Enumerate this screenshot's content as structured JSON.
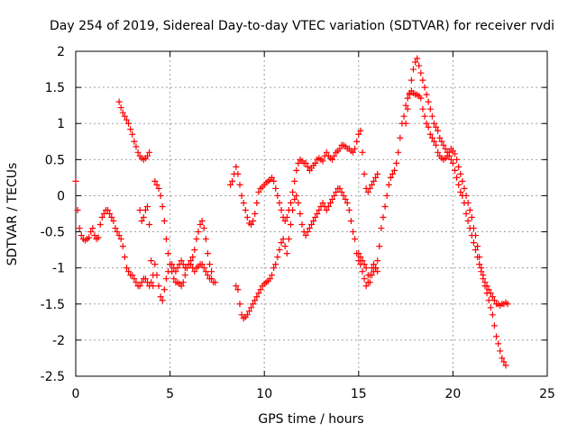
{
  "chart_data": {
    "type": "scatter",
    "title": "Day 254 of 2019, Sidereal Day-to-day VTEC variation (SDTVAR) for receiver rvdi",
    "xlabel": "GPS time / hours",
    "ylabel": "SDTVAR / TECUs",
    "xlim": [
      0,
      25
    ],
    "ylim": [
      -2.5,
      2
    ],
    "xticks": [
      "0",
      "5",
      "10",
      "15",
      "20",
      "25"
    ],
    "yticks": [
      "-2.5",
      "-2",
      "-1.5",
      "-1",
      "-0.5",
      "0",
      "0.5",
      "1",
      "1.5",
      "2"
    ],
    "grid": true,
    "marker": "+",
    "color": "#ff0000",
    "series": [
      {
        "x": [
          0.0,
          0.1,
          0.2,
          0.3,
          0.4,
          0.5,
          0.6,
          0.7,
          0.8,
          0.9,
          1.0,
          1.1,
          1.2,
          1.3,
          1.4,
          1.5,
          1.6,
          1.7,
          1.8,
          1.9,
          2.0,
          2.1,
          2.2,
          2.3,
          2.4,
          2.5,
          2.6,
          2.7,
          2.8,
          2.9,
          3.0,
          3.1,
          3.2,
          3.3,
          3.4,
          3.5,
          3.6,
          3.7,
          3.8,
          3.9,
          4.0,
          4.1,
          4.2,
          4.3,
          4.4,
          4.5,
          4.6,
          4.7,
          4.8,
          4.9,
          5.0,
          5.1,
          5.2,
          5.3,
          5.4,
          5.5,
          5.6,
          5.7,
          5.8,
          5.9,
          6.0,
          6.1,
          6.2,
          6.3,
          6.4,
          6.5,
          6.6,
          6.7,
          6.8,
          6.9,
          7.0,
          7.1,
          7.2,
          7.3,
          7.4
        ],
        "y": [
          0.2,
          -0.2,
          -0.45,
          -0.55,
          -0.6,
          -0.62,
          -0.6,
          -0.58,
          -0.5,
          -0.45,
          -0.55,
          -0.6,
          -0.58,
          -0.4,
          -0.3,
          -0.25,
          -0.2,
          -0.2,
          -0.25,
          -0.3,
          -0.35,
          -0.45,
          -0.5,
          -0.55,
          -0.6,
          -0.7,
          -0.85,
          -1.0,
          -1.05,
          -1.1,
          -1.1,
          -1.15,
          -1.2,
          -1.25,
          -1.25,
          -1.2,
          -1.15,
          -1.15,
          -1.2,
          -1.25,
          -1.2,
          -1.1,
          -0.95,
          -1.1,
          -1.25,
          -1.4,
          -1.45,
          -1.3,
          -1.15,
          -1.05,
          -0.95,
          -0.95,
          -1.0,
          -1.05,
          -1.0,
          -0.95,
          -0.9,
          -0.95,
          -1.0,
          -1.0,
          -0.95,
          -0.95,
          -1.0,
          -1.05,
          -1.0,
          -0.98,
          -0.95,
          -0.95,
          -1.0,
          -1.05,
          -1.1,
          -1.15,
          -1.15,
          -1.2,
          -1.2
        ]
      },
      {
        "x": [
          2.3,
          2.4,
          2.5,
          2.6,
          2.7,
          2.8,
          2.9,
          3.0,
          3.1,
          3.2,
          3.3,
          3.4,
          3.5,
          3.6,
          3.7,
          3.8,
          3.9
        ],
        "y": [
          1.3,
          1.22,
          1.15,
          1.1,
          1.05,
          1.0,
          0.92,
          0.85,
          0.75,
          0.68,
          0.6,
          0.55,
          0.52,
          0.5,
          0.52,
          0.55,
          0.6
        ]
      },
      {
        "x": [
          3.4,
          3.5,
          3.6,
          3.7,
          3.8,
          3.9,
          4.0,
          4.1,
          4.2,
          4.3,
          4.4,
          4.5,
          4.6,
          4.7,
          4.8,
          4.9,
          5.0,
          5.1,
          5.2,
          5.3,
          5.4,
          5.5,
          5.6,
          5.7,
          5.8,
          5.9,
          6.0,
          6.1,
          6.2,
          6.3,
          6.4,
          6.5,
          6.6,
          6.7,
          6.8,
          6.9,
          7.0,
          7.1,
          7.2
        ],
        "y": [
          -0.2,
          -0.35,
          -0.3,
          -0.2,
          -0.15,
          -0.4,
          -0.9,
          -1.25,
          0.2,
          0.15,
          0.1,
          0.0,
          -0.15,
          -0.35,
          -0.6,
          -0.8,
          -0.95,
          -1.05,
          -1.15,
          -1.2,
          -1.2,
          -1.22,
          -1.25,
          -1.2,
          -1.1,
          -1.0,
          -0.95,
          -0.9,
          -0.85,
          -0.75,
          -0.6,
          -0.5,
          -0.4,
          -0.35,
          -0.45,
          -0.6,
          -0.8,
          -0.95,
          -1.05
        ]
      },
      {
        "x": [
          8.2,
          8.3,
          8.4,
          8.5,
          8.6,
          8.7,
          8.8,
          8.9,
          9.0,
          9.1,
          9.2,
          9.3,
          9.4,
          9.5,
          9.6,
          9.7,
          9.8,
          9.9,
          10.0,
          10.1,
          10.2,
          10.3,
          10.4,
          10.5,
          10.6,
          10.7,
          10.8,
          10.9,
          11.0,
          11.1,
          11.2,
          11.3,
          11.4,
          11.5,
          11.6,
          11.7,
          11.8,
          11.9,
          12.0,
          12.1,
          12.2,
          12.3,
          12.4,
          12.5,
          12.6,
          12.7,
          12.8,
          12.9,
          13.0,
          13.1,
          13.2,
          13.3,
          13.4,
          13.5,
          13.6,
          13.7,
          13.8,
          13.9,
          14.0,
          14.1,
          14.2,
          14.3,
          14.4,
          14.5,
          14.6,
          14.7,
          14.8,
          14.9,
          15.0,
          15.1,
          15.2,
          15.3,
          15.4,
          15.5,
          15.6,
          15.7,
          15.8,
          15.9,
          16.0
        ],
        "y": [
          0.15,
          0.2,
          0.3,
          0.4,
          0.3,
          0.15,
          0.0,
          -0.1,
          -0.2,
          -0.3,
          -0.38,
          -0.4,
          -0.35,
          -0.25,
          -0.1,
          0.05,
          0.1,
          0.12,
          0.15,
          0.18,
          0.2,
          0.22,
          0.25,
          0.2,
          0.1,
          0.0,
          -0.1,
          -0.2,
          -0.3,
          -0.35,
          -0.3,
          -0.2,
          -0.1,
          0.05,
          0.2,
          0.35,
          0.45,
          0.5,
          0.48,
          0.45,
          0.45,
          0.4,
          0.35,
          0.38,
          0.42,
          0.45,
          0.5,
          0.52,
          0.5,
          0.48,
          0.55,
          0.6,
          0.55,
          0.52,
          0.5,
          0.55,
          0.6,
          0.62,
          0.65,
          0.7,
          0.7,
          0.68,
          0.65,
          0.65,
          0.62,
          0.6,
          0.65,
          0.75,
          0.85,
          0.9,
          0.6,
          0.3,
          0.1,
          0.05,
          0.1,
          0.15,
          0.2,
          0.25,
          0.3
        ]
      },
      {
        "x": [
          8.5,
          8.6,
          8.7,
          8.8,
          8.9,
          9.0,
          9.1,
          9.2,
          9.3,
          9.4,
          9.5,
          9.6,
          9.7,
          9.8,
          9.9,
          10.0,
          10.1,
          10.2,
          10.3,
          10.4,
          10.5,
          10.6,
          10.7,
          10.8,
          10.9,
          11.0,
          11.1,
          11.2,
          11.3,
          11.4,
          11.5,
          11.6,
          11.7,
          11.8,
          11.9,
          12.0,
          12.1,
          12.2,
          12.3,
          12.4,
          12.5,
          12.6,
          12.7,
          12.8,
          12.9,
          13.0,
          13.1,
          13.2,
          13.3,
          13.4,
          13.5,
          13.6,
          13.7,
          13.8,
          13.9,
          14.0,
          14.1,
          14.2,
          14.3,
          14.4,
          14.5,
          14.6,
          14.7,
          14.8,
          14.9,
          15.0,
          15.1,
          15.2,
          15.3,
          15.4,
          15.5,
          15.6,
          15.7,
          15.8,
          15.9,
          16.0
        ],
        "y": [
          -1.25,
          -1.3,
          -1.5,
          -1.65,
          -1.7,
          -1.68,
          -1.65,
          -1.6,
          -1.55,
          -1.5,
          -1.45,
          -1.4,
          -1.35,
          -1.3,
          -1.25,
          -1.22,
          -1.2,
          -1.18,
          -1.15,
          -1.1,
          -1.0,
          -0.95,
          -0.85,
          -0.75,
          -0.65,
          -0.6,
          -0.7,
          -0.8,
          -0.6,
          -0.4,
          -0.2,
          -0.05,
          0.0,
          -0.1,
          -0.25,
          -0.4,
          -0.5,
          -0.55,
          -0.5,
          -0.45,
          -0.4,
          -0.35,
          -0.3,
          -0.25,
          -0.2,
          -0.15,
          -0.1,
          -0.15,
          -0.2,
          -0.15,
          -0.1,
          -0.05,
          0.0,
          0.05,
          0.1,
          0.1,
          0.05,
          0.0,
          -0.05,
          -0.1,
          -0.2,
          -0.35,
          -0.5,
          -0.6,
          -0.8,
          -0.9,
          -0.95,
          -1.05,
          -1.15,
          -1.25,
          -1.2,
          -1.1,
          -1.0,
          -0.95,
          -1.0,
          -1.05
        ]
      },
      {
        "x": [
          15.0,
          15.1,
          15.2,
          15.3,
          15.4,
          15.5,
          15.6,
          15.7,
          15.8,
          15.9,
          16.0,
          16.1,
          16.2,
          16.3,
          16.4,
          16.5,
          16.6,
          16.7,
          16.8,
          16.9,
          17.0,
          17.1,
          17.2,
          17.3,
          17.4,
          17.5,
          17.6,
          17.7,
          17.8,
          17.9,
          18.0,
          18.1,
          18.2,
          18.3,
          18.4,
          18.5,
          18.6,
          18.7,
          18.8,
          18.9,
          19.0,
          19.1,
          19.2,
          19.3,
          19.4,
          19.5,
          19.6,
          19.7,
          19.8,
          19.9,
          20.0,
          20.1,
          20.2,
          20.3,
          20.4,
          20.5,
          20.6,
          20.7,
          20.8,
          20.9,
          21.0,
          21.1,
          21.2,
          21.3,
          21.4,
          21.5,
          21.6,
          21.7,
          21.8,
          21.9,
          22.0,
          22.1,
          22.2,
          22.3,
          22.4,
          22.5,
          22.6,
          22.7,
          22.8,
          22.9
        ],
        "y": [
          -0.8,
          -0.85,
          -0.9,
          -0.95,
          -1.0,
          -1.1,
          -1.2,
          -1.1,
          -1.05,
          -1.0,
          -0.9,
          -0.7,
          -0.45,
          -0.3,
          -0.15,
          0.0,
          0.15,
          0.25,
          0.3,
          0.35,
          0.45,
          0.6,
          0.8,
          1.0,
          1.1,
          1.25,
          1.35,
          1.42,
          1.45,
          1.42,
          1.4,
          1.4,
          1.38,
          1.35,
          1.2,
          1.1,
          1.0,
          0.95,
          0.85,
          0.8,
          0.75,
          0.7,
          0.6,
          0.55,
          0.52,
          0.5,
          0.52,
          0.55,
          0.6,
          0.65,
          0.62,
          0.58,
          0.5,
          0.4,
          0.3,
          0.2,
          0.1,
          0.0,
          -0.1,
          -0.2,
          -0.3,
          -0.45,
          -0.55,
          -0.7,
          -0.85,
          -1.0,
          -1.1,
          -1.2,
          -1.25,
          -1.3,
          -1.35,
          -1.4,
          -1.45,
          -1.5,
          -1.5,
          -1.52,
          -1.5,
          -1.5,
          -1.48,
          -1.5
        ]
      },
      {
        "x": [
          17.5,
          17.6,
          17.7,
          17.8,
          17.9,
          18.0,
          18.1,
          18.2,
          18.3,
          18.4,
          18.5,
          18.6,
          18.7,
          18.8,
          18.9,
          19.0,
          19.1,
          19.2,
          19.3,
          19.4,
          19.5,
          19.6,
          19.7,
          19.8,
          19.9,
          20.0,
          20.1,
          20.2,
          20.3,
          20.4,
          20.5,
          20.6,
          20.7,
          20.8,
          20.9,
          21.0,
          21.1,
          21.2,
          21.3,
          21.4,
          21.5,
          21.6,
          21.7,
          21.8,
          21.9,
          22.0,
          22.1,
          22.2,
          22.3,
          22.4,
          22.5,
          22.6,
          22.7,
          22.8
        ],
        "y": [
          1.0,
          1.2,
          1.4,
          1.6,
          1.75,
          1.85,
          1.9,
          1.8,
          1.7,
          1.6,
          1.5,
          1.4,
          1.3,
          1.2,
          1.1,
          1.0,
          0.95,
          0.9,
          0.8,
          0.75,
          0.7,
          0.65,
          0.6,
          0.55,
          0.5,
          0.45,
          0.35,
          0.25,
          0.15,
          0.05,
          0.0,
          -0.1,
          -0.25,
          -0.35,
          -0.45,
          -0.55,
          -0.65,
          -0.75,
          -0.85,
          -0.95,
          -1.05,
          -1.15,
          -1.25,
          -1.35,
          -1.45,
          -1.55,
          -1.65,
          -1.8,
          -1.95,
          -2.05,
          -2.15,
          -2.25,
          -2.3,
          -2.35
        ]
      }
    ]
  }
}
